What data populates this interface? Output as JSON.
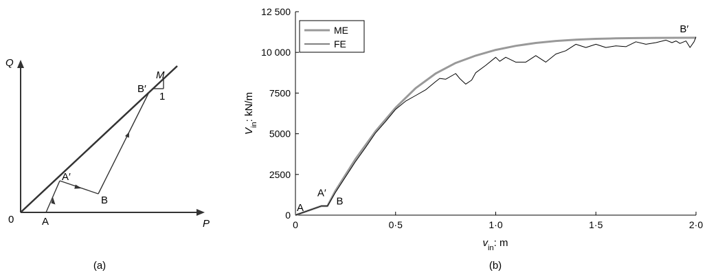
{
  "chart_data": [
    {
      "type": "diagram",
      "panel_label": "(a)",
      "axes": {
        "x": "P",
        "y": "Q",
        "origin": "0"
      },
      "points": {
        "A": "A",
        "A_prime": "A′",
        "B": "B",
        "B_prime": "B′"
      },
      "slope": {
        "name": "M",
        "run": "1"
      }
    },
    {
      "type": "line",
      "panel_label": "(b)",
      "ylabel": {
        "main": "V",
        "sub": "in",
        "rest": ": kN/m"
      },
      "xlabel": {
        "main": "v",
        "sub": "in",
        "rest": ": m"
      },
      "xlim": [
        0,
        2.0
      ],
      "ylim": [
        0,
        12500
      ],
      "x_ticks": [
        {
          "value": 0,
          "label": "0"
        },
        {
          "value": 0.5,
          "label": "0·5"
        },
        {
          "value": 1.0,
          "label": "1·0"
        },
        {
          "value": 1.5,
          "label": "1·5"
        },
        {
          "value": 2.0,
          "label": "2·0"
        }
      ],
      "y_ticks": [
        {
          "value": 0,
          "label": "0"
        },
        {
          "value": 2500,
          "label": "2500"
        },
        {
          "value": 5000,
          "label": "5000"
        },
        {
          "value": 7500,
          "label": "7500"
        },
        {
          "value": 10000,
          "label": "10 000"
        },
        {
          "value": 12500,
          "label": "12 500"
        }
      ],
      "legend": {
        "placement": "top-left",
        "entries": [
          "ME",
          "FE"
        ]
      },
      "annotations": [
        {
          "text": "A",
          "x": 0.0,
          "y": 0
        },
        {
          "text": "A′",
          "x": 0.13,
          "y": 560
        },
        {
          "text": "B",
          "x": 0.17,
          "y": 560
        },
        {
          "text": "B′",
          "x": 1.96,
          "y": 10900
        }
      ],
      "series": [
        {
          "name": "ME",
          "color": "#999999",
          "x": [
            0,
            0.13,
            0.16,
            0.2,
            0.3,
            0.4,
            0.5,
            0.6,
            0.7,
            0.8,
            0.9,
            1.0,
            1.1,
            1.2,
            1.3,
            1.4,
            1.5,
            1.6,
            1.7,
            1.8,
            1.9,
            2.0
          ],
          "y": [
            0,
            560,
            560,
            1500,
            3450,
            5150,
            6600,
            7800,
            8700,
            9350,
            9800,
            10150,
            10400,
            10580,
            10700,
            10780,
            10830,
            10860,
            10880,
            10890,
            10895,
            10900
          ]
        },
        {
          "name": "FE",
          "color": "#000000",
          "x": [
            0,
            0.13,
            0.16,
            0.2,
            0.25,
            0.3,
            0.35,
            0.4,
            0.45,
            0.5,
            0.55,
            0.6,
            0.65,
            0.7,
            0.72,
            0.75,
            0.8,
            0.82,
            0.85,
            0.88,
            0.9,
            0.95,
            1.0,
            1.02,
            1.05,
            1.1,
            1.15,
            1.2,
            1.25,
            1.3,
            1.35,
            1.4,
            1.45,
            1.5,
            1.55,
            1.6,
            1.65,
            1.7,
            1.75,
            1.8,
            1.85,
            1.88,
            1.9,
            1.92,
            1.95,
            1.97,
            1.99,
            2.0
          ],
          "y": [
            0,
            560,
            560,
            1400,
            2350,
            3300,
            4150,
            5050,
            5750,
            6500,
            7000,
            7350,
            7700,
            8200,
            8400,
            8350,
            8700,
            8400,
            8050,
            8300,
            8750,
            9200,
            9700,
            9450,
            9700,
            9400,
            9400,
            9800,
            9400,
            9900,
            10100,
            10500,
            10300,
            10500,
            10300,
            10400,
            10350,
            10650,
            10500,
            10600,
            10750,
            10600,
            10700,
            10550,
            10700,
            10300,
            10650,
            10950
          ]
        }
      ]
    }
  ]
}
